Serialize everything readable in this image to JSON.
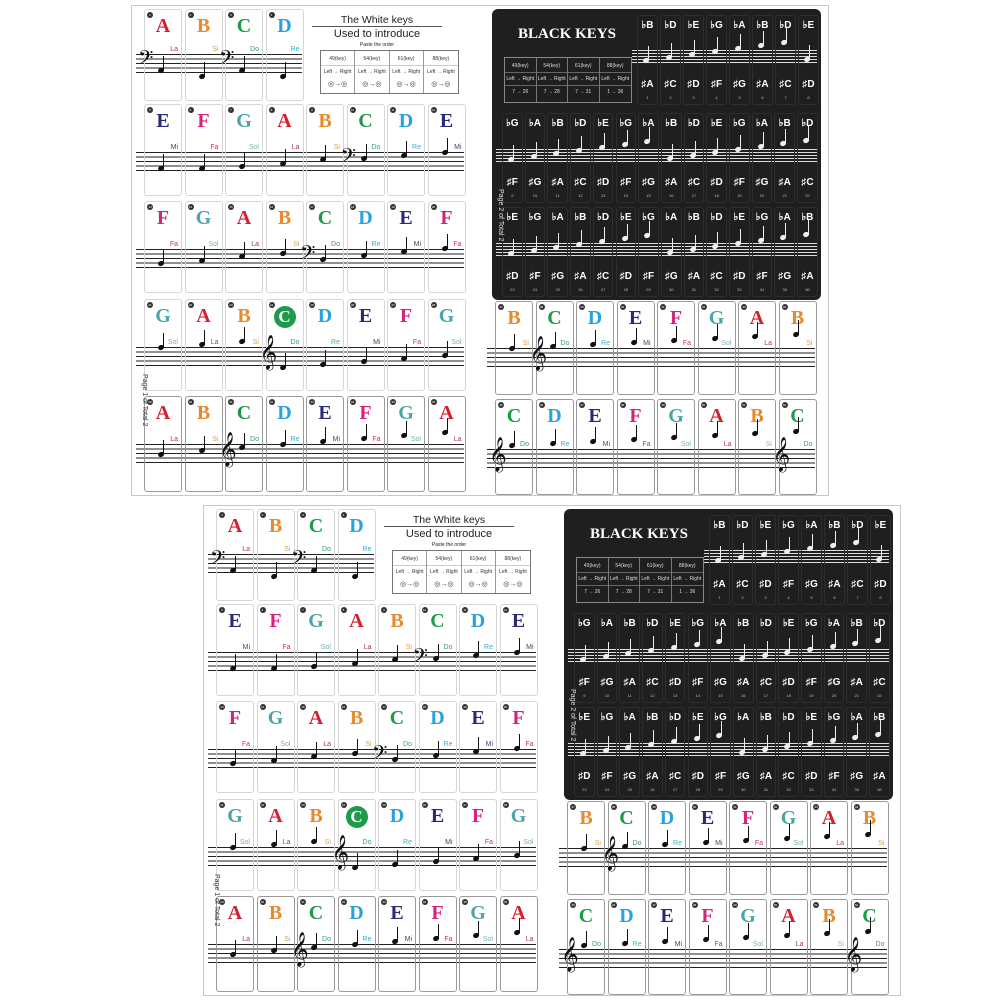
{
  "colors": {
    "A": "#d3202f",
    "B": "#e8892b",
    "C": "#1e9a4b",
    "D": "#2aa2dd",
    "E": "#2b2a78",
    "F": "#d4237e",
    "G": "#4aa5a8",
    "solfege": {
      "La": "#b0306a",
      "Si": "#d6a24a",
      "Do": "#3a9a7a",
      "Re": "#3ab0c8",
      "Mi": "#444466",
      "Fa": "#c02c80",
      "Sol": "#7ab0b0"
    }
  },
  "white_sheet": {
    "title": "The White keys",
    "subtitle": "Used  to introduce",
    "note": "Paste the order",
    "page_label": "Page 1 of Total 2",
    "table": [
      {
        "keys": "49(key)",
        "dir": "Left → Right"
      },
      {
        "keys": "54(key)",
        "dir": "Left → Right"
      },
      {
        "keys": "61(key)",
        "dir": "Left → Right"
      },
      {
        "keys": "88(key)",
        "dir": "Left → Right"
      }
    ],
    "rows": [
      [
        [
          "A",
          "La"
        ],
        [
          "B",
          "Si"
        ],
        [
          "C",
          "Do"
        ],
        [
          "D",
          "Re"
        ]
      ],
      [
        [
          "E",
          "Mi"
        ],
        [
          "F",
          "Fa"
        ],
        [
          "G",
          "Sol"
        ],
        [
          "A",
          "La"
        ],
        [
          "B",
          "Si"
        ],
        [
          "C",
          "Do"
        ],
        [
          "D",
          "Re"
        ],
        [
          "E",
          "Mi"
        ]
      ],
      [
        [
          "F",
          "Fa"
        ],
        [
          "G",
          "Sol"
        ],
        [
          "A",
          "La"
        ],
        [
          "B",
          "Si"
        ],
        [
          "C",
          "Do"
        ],
        [
          "D",
          "Re"
        ],
        [
          "E",
          "Mi"
        ],
        [
          "F",
          "Fa"
        ]
      ],
      [
        [
          "G",
          "Sol"
        ],
        [
          "A",
          "La"
        ],
        [
          "B",
          "Si"
        ],
        [
          "C",
          "Do"
        ],
        [
          "D",
          "Re"
        ],
        [
          "E",
          "Mi"
        ],
        [
          "F",
          "Fa"
        ],
        [
          "G",
          "Sol"
        ]
      ],
      [
        [
          "A",
          "La"
        ],
        [
          "B",
          "Si"
        ],
        [
          "C",
          "Do"
        ],
        [
          "D",
          "Re"
        ],
        [
          "E",
          "Mi"
        ],
        [
          "F",
          "Fa"
        ],
        [
          "G",
          "Sol"
        ],
        [
          "A",
          "La"
        ]
      ]
    ],
    "middle_c": "C",
    "right_rows": [
      [
        [
          "B",
          "Si"
        ],
        [
          "C",
          "Do"
        ],
        [
          "D",
          "Re"
        ],
        [
          "E",
          "Mi"
        ],
        [
          "F",
          "Fa"
        ],
        [
          "G",
          "Sol"
        ],
        [
          "A",
          "La"
        ],
        [
          "B",
          "Si"
        ]
      ],
      [
        [
          "C",
          "Do"
        ],
        [
          "D",
          "Re"
        ],
        [
          "E",
          "Mi"
        ],
        [
          "F",
          "Fa"
        ],
        [
          "G",
          "Sol"
        ],
        [
          "A",
          "La"
        ],
        [
          "B",
          "Si"
        ],
        [
          "C",
          "Do"
        ]
      ]
    ]
  },
  "black_sheet": {
    "title": "BLACK KEYS",
    "page_label": "Page 2 of Total 2",
    "table": [
      {
        "keys": "49(key)",
        "dir": "Left → Right",
        "range": "7 → 26"
      },
      {
        "keys": "54(key)",
        "dir": "Left → Right",
        "range": "7 → 28"
      },
      {
        "keys": "61(key)",
        "dir": "Left → Right",
        "range": "7 → 31"
      },
      {
        "keys": "88(key)",
        "dir": "Left → Right",
        "range": "1 → 36"
      }
    ],
    "rows": [
      {
        "flats": [
          "♭B",
          "♭D",
          "♭E",
          "♭G",
          "♭A",
          "♭B",
          "♭D",
          "♭E"
        ],
        "sharps": [
          "♯A",
          "♯C",
          "♯D",
          "♯F",
          "♯G",
          "♯A",
          "♯C",
          "♯D"
        ],
        "start": 1
      },
      {
        "flats": [
          "♭G",
          "♭A",
          "♭B",
          "♭D",
          "♭E",
          "♭G",
          "♭A",
          "♭B",
          "♭D",
          "♭E",
          "♭G",
          "♭A",
          "♭B",
          "♭D"
        ],
        "sharps": [
          "♯F",
          "♯G",
          "♯A",
          "♯C",
          "♯D",
          "♯F",
          "♯G",
          "♯A",
          "♯C",
          "♯D",
          "♯F",
          "♯G",
          "♯A",
          "♯C"
        ],
        "start": 9
      },
      {
        "flats": [
          "♭E",
          "♭G",
          "♭A",
          "♭B",
          "♭D",
          "♭E",
          "♭G",
          "♭A",
          "♭B",
          "♭D",
          "♭E",
          "♭G",
          "♭A",
          "♭B"
        ],
        "sharps": [
          "♯D",
          "♯F",
          "♯G",
          "♯A",
          "♯C",
          "♯D",
          "♯F",
          "♯G",
          "♯A",
          "♯C",
          "♯D",
          "♯F",
          "♯G",
          "♯A"
        ],
        "start": 23
      }
    ]
  },
  "clefs": {
    "bass": "𝄢",
    "treble": "𝄞"
  }
}
